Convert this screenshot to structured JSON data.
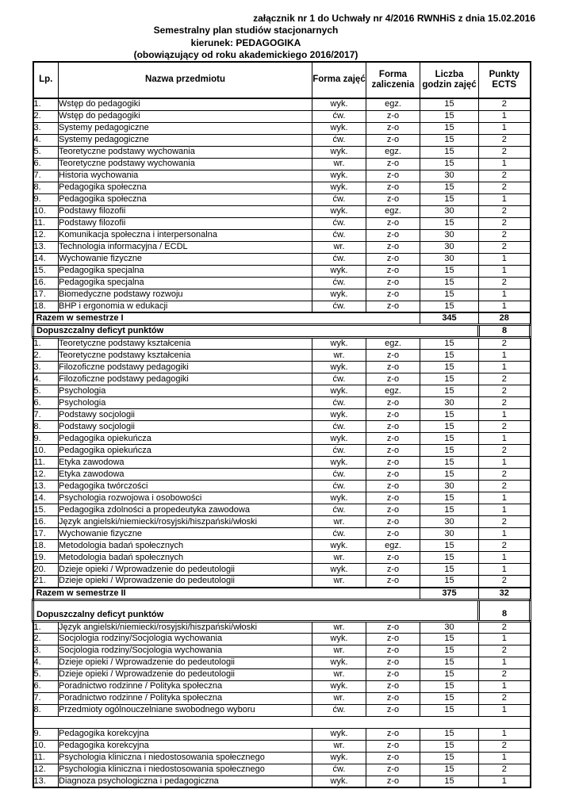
{
  "header": {
    "attachment_line": "załącznik nr 1 do Uchwały nr 4/2016 RWNHiS z dnia 15.02.2016",
    "title": "Semestralny plan studiów stacjonarnych",
    "major": "kierunek: PEDAGOGIKA",
    "validity": "(obowiązujący od roku akademickiego 2016/2017)"
  },
  "table": {
    "columns": [
      "Lp.",
      "Nazwa przedmiotu",
      "Forma zajęć",
      "Forma zaliczenia",
      "Liczba godzin zajęć",
      "Punkty ECTS"
    ],
    "semester1": {
      "rows": [
        [
          "1.",
          "Wstęp do pedagogiki",
          "wyk.",
          "egz.",
          "15",
          "2"
        ],
        [
          "2.",
          "Wstęp do pedagogiki",
          "ćw.",
          "z-o",
          "15",
          "1"
        ],
        [
          "3.",
          "Systemy pedagogiczne",
          "wyk.",
          "z-o",
          "15",
          "1"
        ],
        [
          "4.",
          "Systemy pedagogiczne",
          "ćw.",
          "z-o",
          "15",
          "2"
        ],
        [
          "5.",
          "Teoretyczne podstawy wychowania",
          "wyk.",
          "egz.",
          "15",
          "2"
        ],
        [
          "6.",
          "Teoretyczne podstawy wychowania",
          "wr.",
          "z-o",
          "15",
          "1"
        ],
        [
          "7.",
          "Historia wychowania",
          "wyk.",
          "z-o",
          "30",
          "2"
        ],
        [
          "8.",
          "Pedagogika społeczna",
          "wyk.",
          "z-o",
          "15",
          "2"
        ],
        [
          "9.",
          "Pedagogika społeczna",
          "ćw.",
          "z-o",
          "15",
          "1"
        ],
        [
          "10.",
          "Podstawy filozofii",
          "wyk.",
          "egz.",
          "30",
          "2"
        ],
        [
          "11.",
          "Podstawy filozofii",
          "ćw.",
          "z-o",
          "15",
          "2"
        ],
        [
          "12.",
          "Komunikacja społeczna i interpersonalna",
          "ćw.",
          "z-o",
          "30",
          "2"
        ],
        [
          "13.",
          "Technologia informacyjna / ECDL",
          "wr.",
          "z-o",
          "30",
          "2"
        ],
        [
          "14.",
          "Wychowanie fizyczne",
          "ćw.",
          "z-o",
          "30",
          "1"
        ],
        [
          "15.",
          "Pedagogika specjalna",
          "wyk.",
          "z-o",
          "15",
          "1"
        ],
        [
          "16.",
          "Pedagogika specjalna",
          "ćw.",
          "z-o",
          "15",
          "2"
        ],
        [
          "17.",
          "Biomedyczne podstawy rozwoju",
          "wyk.",
          "z-o",
          "15",
          "1"
        ],
        [
          "18.",
          "BHP i ergonomia w edukacji",
          "ćw.",
          "z-o",
          "15",
          "1"
        ]
      ],
      "summary_label": "Razem w semestrze I",
      "summary_hours": "345",
      "summary_ects": "28",
      "deficit_label": "Dopuszczalny deficyt punktów",
      "deficit_ects": "8"
    },
    "semester2": {
      "rows": [
        [
          "1.",
          "Teoretyczne podstawy kształcenia",
          "wyk.",
          "egz.",
          "15",
          "2"
        ],
        [
          "2.",
          "Teoretyczne podstawy kształcenia",
          "wr.",
          "z-o",
          "15",
          "1"
        ],
        [
          "3.",
          "Filozoficzne podstawy pedagogiki",
          "wyk.",
          "z-o",
          "15",
          "1"
        ],
        [
          "4.",
          "Filozoficzne podstawy pedagogiki",
          "ćw.",
          "z-o",
          "15",
          "2"
        ],
        [
          "5.",
          "Psychologia",
          "wyk.",
          "egz.",
          "15",
          "2"
        ],
        [
          "6.",
          "Psychologia",
          "ćw.",
          "z-o",
          "30",
          "2"
        ],
        [
          "7.",
          "Podstawy socjologii",
          "wyk.",
          "z-o",
          "15",
          "1"
        ],
        [
          "8.",
          "Podstawy socjologii",
          "ćw.",
          "z-o",
          "15",
          "2"
        ],
        [
          "9.",
          "Pedagogika opiekuńcza",
          "wyk.",
          "z-o",
          "15",
          "1"
        ],
        [
          "10.",
          "Pedagogika opiekuńcza",
          "ćw.",
          "z-o",
          "15",
          "2"
        ],
        [
          "11.",
          "Etyka zawodowa",
          "wyk.",
          "z-o",
          "15",
          "1"
        ],
        [
          "12.",
          "Etyka zawodowa",
          "ćw.",
          "z-o",
          "15",
          "2"
        ],
        [
          "13.",
          "Pedagogika twórczości",
          "ćw.",
          "z-o",
          "30",
          "2"
        ],
        [
          "14.",
          "Psychologia rozwojowa i osobowości",
          "wyk.",
          "z-o",
          "15",
          "1"
        ],
        [
          "15.",
          "Pedagogika zdolności a propedeutyka zawodowa",
          "ćw.",
          "z-o",
          "15",
          "1"
        ],
        [
          "16.",
          "Język angielski/niemiecki/rosyjski/hiszpański/włoski",
          "wr.",
          "z-o",
          "30",
          "2"
        ],
        [
          "17.",
          "Wychowanie fizyczne",
          "ćw.",
          "z-o",
          "30",
          "1"
        ],
        [
          "18.",
          "Metodologia badań społecznych",
          "wyk.",
          "egz.",
          "15",
          "2"
        ],
        [
          "19.",
          "Metodologia badań społecznych",
          "wr.",
          "z-o",
          "15",
          "1"
        ],
        [
          "20.",
          "Dzieje opieki / Wprowadzenie do pedeutologii",
          "wyk.",
          "z-o",
          "15",
          "1"
        ],
        [
          "21.",
          "Dzieje opieki / Wprowadzenie do pedeutologii",
          "wr.",
          "z-o",
          "15",
          "2"
        ]
      ],
      "summary_label": "Razem w semestrze II",
      "summary_hours": "375",
      "summary_ects": "32",
      "deficit_label": "Dopuszczalny deficyt punktów",
      "deficit_ects": "8"
    },
    "semester3": {
      "rows_a": [
        [
          "1.",
          "Język angielski/niemiecki/rosyjski/hiszpański/włoski",
          "wr.",
          "z-o",
          "30",
          "2"
        ],
        [
          "2.",
          "Socjologia rodziny/Socjologia wychowania",
          "wyk.",
          "z-o",
          "15",
          "1"
        ],
        [
          "3.",
          "Socjologia rodziny/Socjologia wychowania",
          "wr.",
          "z-o",
          "15",
          "2"
        ],
        [
          "4.",
          "Dzieje opieki / Wprowadzenie do pedeutologii",
          "wyk.",
          "z-o",
          "15",
          "1"
        ],
        [
          "5.",
          "Dzieje opieki / Wprowadzenie do pedeutologii",
          "wr.",
          "z-o",
          "15",
          "2"
        ],
        [
          "6.",
          "Poradnictwo rodzinne / Polityka społeczna",
          "wyk.",
          "z-o",
          "15",
          "1"
        ],
        [
          "7.",
          "Poradnictwo rodzinne / Polityka społeczna",
          "wr.",
          "z-o",
          "15",
          "2"
        ],
        [
          "8.",
          "Przedmioty ogólnouczelniane swobodnego wyboru",
          "ćw.",
          "z-o",
          "15",
          "1"
        ]
      ],
      "rows_b": [
        [
          "9.",
          "Pedagogika korekcyjna",
          "wyk.",
          "z-o",
          "15",
          "1"
        ],
        [
          "10.",
          "Pedagogika korekcyjna",
          "wr.",
          "z-o",
          "15",
          "2"
        ],
        [
          "11.",
          "Psychologia kliniczna i niedostosowania społecznego",
          "wyk.",
          "z-o",
          "15",
          "1"
        ],
        [
          "12.",
          "Psychologia kliniczna i niedostosowania społecznego",
          "ćw.",
          "z-o",
          "15",
          "2"
        ],
        [
          "13.",
          "Diagnoza psychologiczna i pedagogiczna",
          "wyk.",
          "z-o",
          "15",
          "1"
        ]
      ]
    }
  }
}
